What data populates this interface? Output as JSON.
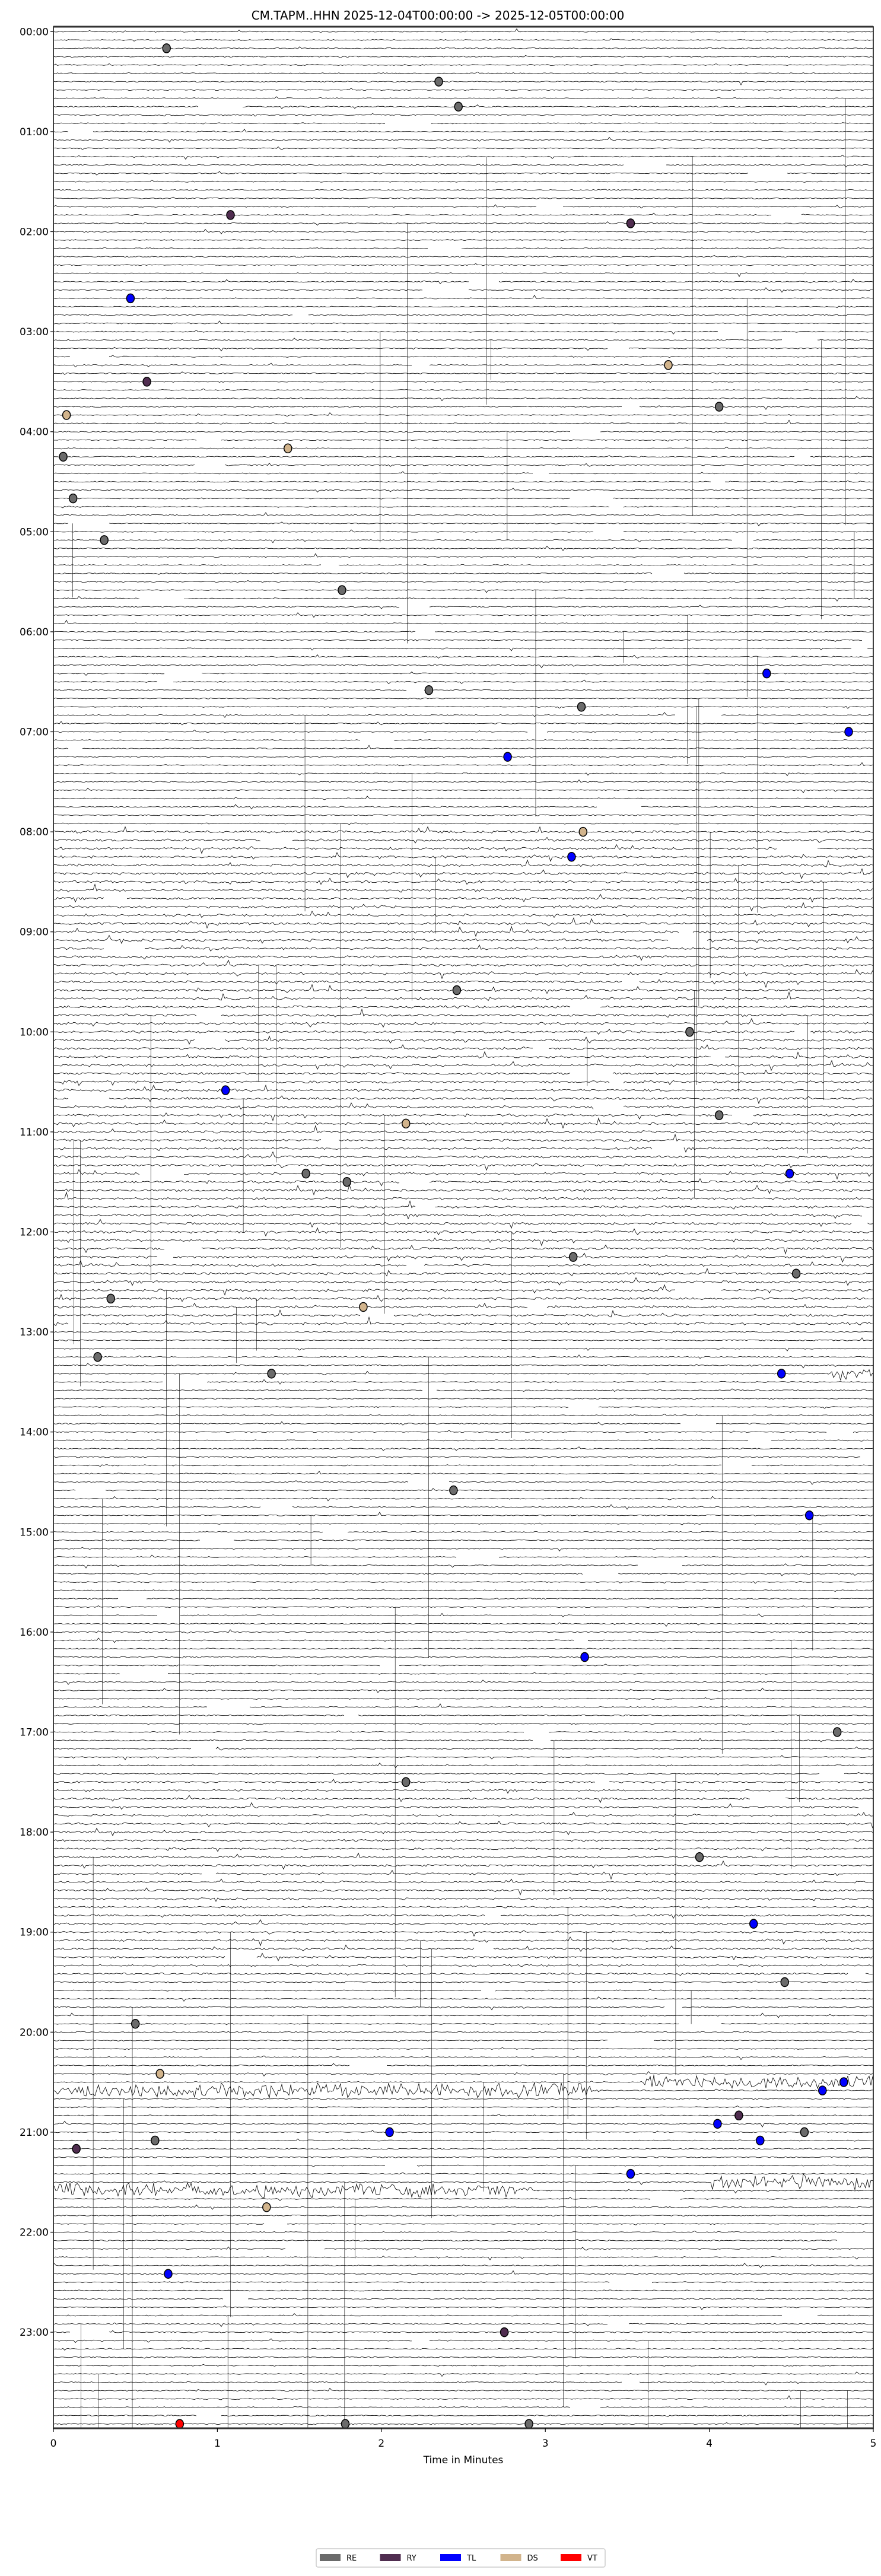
{
  "chart_data": {
    "type": "scatter",
    "title": "CM.TAPM..HHN  2025-12-04T00:00:00 -> 2025-12-05T00:00:00",
    "xlabel": "Time in Minutes",
    "xlim": [
      0,
      5
    ],
    "x_ticks": [
      "0",
      "1",
      "2",
      "3",
      "4",
      "5"
    ],
    "y_ticks": [
      "00:00",
      "01:00",
      "02:00",
      "03:00",
      "04:00",
      "05:00",
      "06:00",
      "07:00",
      "08:00",
      "09:00",
      "10:00",
      "11:00",
      "12:00",
      "13:00",
      "14:00",
      "15:00",
      "16:00",
      "17:00",
      "18:00",
      "19:00",
      "20:00",
      "21:00",
      "22:00",
      "23:00"
    ],
    "minutes_per_line": 5,
    "grid": false,
    "legend_placement": "bottom-center",
    "legend": [
      {
        "label": "RE",
        "color": "#6b6b6b"
      },
      {
        "label": "RY",
        "color": "#502d50"
      },
      {
        "label": "TL",
        "color": "#0000ff"
      },
      {
        "label": "DS",
        "color": "#d2b48c"
      },
      {
        "label": "VT",
        "color": "#ff0000"
      }
    ],
    "events": [
      {
        "line": "00:10",
        "minute": 0.69,
        "type": "RE"
      },
      {
        "line": "00:30",
        "minute": 2.35,
        "type": "RE"
      },
      {
        "line": "00:45",
        "minute": 2.47,
        "type": "RE"
      },
      {
        "line": "01:50",
        "minute": 1.08,
        "type": "RY"
      },
      {
        "line": "01:55",
        "minute": 3.52,
        "type": "RY"
      },
      {
        "line": "02:40",
        "minute": 0.47,
        "type": "TL"
      },
      {
        "line": "03:20",
        "minute": 3.75,
        "type": "DS"
      },
      {
        "line": "03:30",
        "minute": 0.57,
        "type": "RY"
      },
      {
        "line": "03:45",
        "minute": 4.06,
        "type": "RE"
      },
      {
        "line": "03:50",
        "minute": 0.08,
        "type": "DS"
      },
      {
        "line": "04:10",
        "minute": 1.43,
        "type": "DS"
      },
      {
        "line": "04:15",
        "minute": 0.06,
        "type": "RE"
      },
      {
        "line": "04:40",
        "minute": 0.12,
        "type": "RE"
      },
      {
        "line": "05:05",
        "minute": 0.31,
        "type": "RE"
      },
      {
        "line": "05:35",
        "minute": 1.76,
        "type": "RE"
      },
      {
        "line": "06:25",
        "minute": 4.35,
        "type": "TL"
      },
      {
        "line": "06:35",
        "minute": 2.29,
        "type": "RE"
      },
      {
        "line": "06:45",
        "minute": 3.22,
        "type": "RE"
      },
      {
        "line": "07:00",
        "minute": 4.85,
        "type": "TL"
      },
      {
        "line": "07:15",
        "minute": 2.77,
        "type": "TL"
      },
      {
        "line": "08:00",
        "minute": 3.23,
        "type": "DS"
      },
      {
        "line": "08:15",
        "minute": 3.16,
        "type": "TL"
      },
      {
        "line": "09:35",
        "minute": 2.46,
        "type": "RE"
      },
      {
        "line": "10:00",
        "minute": 3.88,
        "type": "RE"
      },
      {
        "line": "10:35",
        "minute": 1.05,
        "type": "TL"
      },
      {
        "line": "10:50",
        "minute": 4.06,
        "type": "RE"
      },
      {
        "line": "10:55",
        "minute": 2.15,
        "type": "DS"
      },
      {
        "line": "11:25",
        "minute": 1.54,
        "type": "RE"
      },
      {
        "line": "11:25",
        "minute": 4.49,
        "type": "TL"
      },
      {
        "line": "11:30",
        "minute": 1.79,
        "type": "RE"
      },
      {
        "line": "12:15",
        "minute": 3.17,
        "type": "RE"
      },
      {
        "line": "12:25",
        "minute": 4.53,
        "type": "RE"
      },
      {
        "line": "12:40",
        "minute": 0.35,
        "type": "RE"
      },
      {
        "line": "12:45",
        "minute": 1.89,
        "type": "DS"
      },
      {
        "line": "13:15",
        "minute": 0.27,
        "type": "RE"
      },
      {
        "line": "13:25",
        "minute": 1.33,
        "type": "RE"
      },
      {
        "line": "13:25",
        "minute": 4.44,
        "type": "TL"
      },
      {
        "line": "14:35",
        "minute": 2.44,
        "type": "RE"
      },
      {
        "line": "14:50",
        "minute": 4.61,
        "type": "TL"
      },
      {
        "line": "16:15",
        "minute": 3.24,
        "type": "TL"
      },
      {
        "line": "17:00",
        "minute": 4.78,
        "type": "RE"
      },
      {
        "line": "17:30",
        "minute": 2.15,
        "type": "RE"
      },
      {
        "line": "18:15",
        "minute": 3.94,
        "type": "RE"
      },
      {
        "line": "18:55",
        "minute": 4.27,
        "type": "TL"
      },
      {
        "line": "19:30",
        "minute": 4.46,
        "type": "RE"
      },
      {
        "line": "19:55",
        "minute": 0.5,
        "type": "RE"
      },
      {
        "line": "20:25",
        "minute": 0.65,
        "type": "DS"
      },
      {
        "line": "20:30",
        "minute": 4.82,
        "type": "TL"
      },
      {
        "line": "20:35",
        "minute": 4.69,
        "type": "TL"
      },
      {
        "line": "20:50",
        "minute": 4.18,
        "type": "RY"
      },
      {
        "line": "20:55",
        "minute": 4.05,
        "type": "TL"
      },
      {
        "line": "21:00",
        "minute": 2.05,
        "type": "TL"
      },
      {
        "line": "21:00",
        "minute": 4.58,
        "type": "RE"
      },
      {
        "line": "21:05",
        "minute": 0.62,
        "type": "RE"
      },
      {
        "line": "21:05",
        "minute": 4.31,
        "type": "TL"
      },
      {
        "line": "21:10",
        "minute": 0.14,
        "type": "RY"
      },
      {
        "line": "21:25",
        "minute": 3.52,
        "type": "TL"
      },
      {
        "line": "21:45",
        "minute": 1.3,
        "type": "DS"
      },
      {
        "line": "22:25",
        "minute": 0.7,
        "type": "TL"
      },
      {
        "line": "23:00",
        "minute": 2.75,
        "type": "RY"
      },
      {
        "line": "23:55",
        "minute": 0.77,
        "type": "VT"
      },
      {
        "line": "23:55",
        "minute": 1.78,
        "type": "RE"
      },
      {
        "line": "23:55",
        "minute": 2.9,
        "type": "RE"
      }
    ]
  }
}
